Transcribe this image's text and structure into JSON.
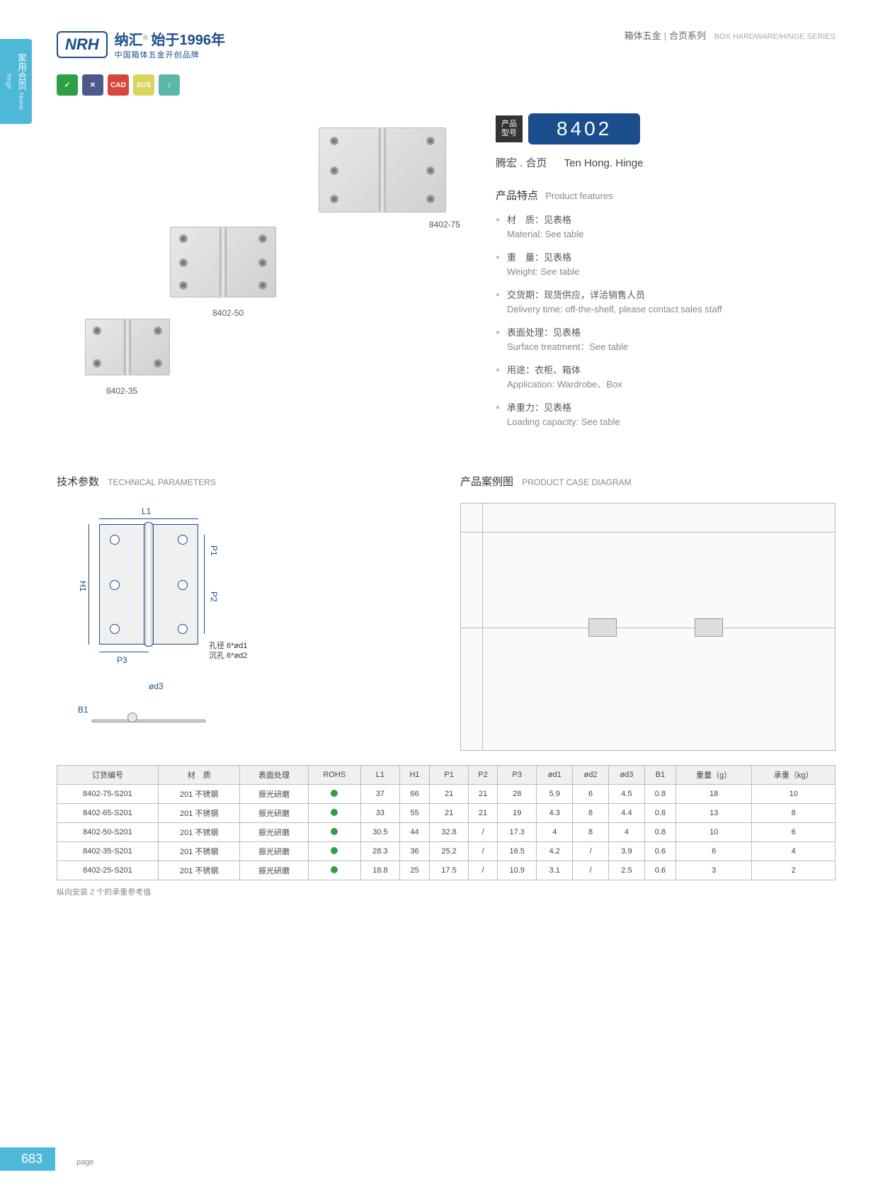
{
  "sideTab": {
    "cn": "家用合页",
    "en": "Home hinge"
  },
  "logo": {
    "mark": "NRH",
    "cn": "纳汇",
    "sup": "®",
    "year": "始于1996年",
    "sub": "中国箱体五金开创品牌"
  },
  "hdrRight": {
    "cn1": "箱体五金",
    "cn2": "合页系列",
    "en": "BOX HARDWARE/HINGE SERIES"
  },
  "iconBadges": [
    {
      "bg": "#2ea044",
      "txt": "✓"
    },
    {
      "bg": "#4a5a8a",
      "txt": "✕"
    },
    {
      "bg": "#d9463e",
      "txt": "CAD"
    },
    {
      "bg": "#d9d45a",
      "txt": "SUS"
    },
    {
      "bg": "#5ab8a8",
      "txt": "↕"
    }
  ],
  "imgLabels": {
    "l75": "8402-75",
    "l50": "8402-50",
    "l35": "8402-35"
  },
  "modelLabel": "产品\n型号",
  "modelNum": "8402",
  "prodName": {
    "cn": "腾宏 . 合页",
    "en": "Ten Hong. Hinge"
  },
  "featTitle": {
    "cn": "产品特点",
    "en": "Product features"
  },
  "features": [
    {
      "cn": "材　质：见表格",
      "en": "Material: See table"
    },
    {
      "cn": "重　量：见表格",
      "en": "Weight: See table"
    },
    {
      "cn": "交货期：现货供应，详洽销售人员",
      "en": "Delivery time: off-the-shelf, please contact sales staff"
    },
    {
      "cn": "表面处理：见表格",
      "en": "Surface treatment：See table"
    },
    {
      "cn": "用途：衣柜、箱体",
      "en": "Application: Wardrobe、Box"
    },
    {
      "cn": "承重力：见表格",
      "en": "Loading capacity: See table"
    }
  ],
  "techTitle": {
    "cn": "技术参数",
    "en": "TECHNICAL PARAMETERS"
  },
  "caseTitle": {
    "cn": "产品案例图",
    "en": "PRODUCT CASE DIAGRAM"
  },
  "dims": {
    "L1": "L1",
    "H1": "H1",
    "P1": "P1",
    "P2": "P2",
    "P3": "P3",
    "B1": "B1",
    "od3": "ød3"
  },
  "holeNote": {
    "l1": "孔径 6*ød1",
    "l2": "沉孔 6*ød2"
  },
  "table": {
    "headers": [
      "订货编号",
      "材　质",
      "表面处理",
      "ROHS",
      "L1",
      "H1",
      "P1",
      "P2",
      "P3",
      "ød1",
      "ød2",
      "ød3",
      "B1",
      "重量（g）",
      "承重（kg）"
    ],
    "rows": [
      [
        "8402-75-S201",
        "201 不锈钢",
        "振光研磨",
        "●",
        "37",
        "66",
        "21",
        "21",
        "28",
        "5.9",
        "6",
        "4.5",
        "0.8",
        "18",
        "10"
      ],
      [
        "8402-65-S201",
        "201 不锈钢",
        "振光研磨",
        "●",
        "33",
        "55",
        "21",
        "21",
        "19",
        "4.3",
        "8",
        "4.4",
        "0.8",
        "13",
        "8"
      ],
      [
        "8402-50-S201",
        "201 不锈钢",
        "振光研磨",
        "●",
        "30.5",
        "44",
        "32.8",
        "/",
        "17.3",
        "4",
        "8",
        "4",
        "0.8",
        "10",
        "6"
      ],
      [
        "8402-35-S201",
        "201 不锈钢",
        "振光研磨",
        "●",
        "28.3",
        "36",
        "25.2",
        "/",
        "16.5",
        "4.2",
        "/",
        "3.9",
        "0.6",
        "6",
        "4"
      ],
      [
        "8402-25-S201",
        "201 不锈钢",
        "振光研磨",
        "●",
        "18.8",
        "25",
        "17.5",
        "/",
        "10.9",
        "3.1",
        "/",
        "2.5",
        "0.6",
        "3",
        "2"
      ]
    ]
  },
  "tableNote": "纵向安装 2 个的承重参考值",
  "pageNum": "683",
  "pageLbl": "page"
}
